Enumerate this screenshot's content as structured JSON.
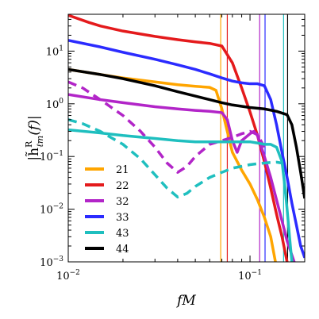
{
  "chart_data": {
    "type": "line",
    "xlabel": "fM",
    "ylabel": "|h̃ℓm R(f)|",
    "ylabel_main": "|h̃",
    "ylabel_sup": "R",
    "ylabel_sub": "ℓm",
    "ylabel_tail": "(f)|",
    "xscale": "log",
    "yscale": "log",
    "xlim": [
      0.01,
      0.2
    ],
    "ylim": [
      0.001,
      50
    ],
    "x_ticks": [
      {
        "value": 0.01,
        "label_base": "10",
        "label_exp": "−2"
      },
      {
        "value": 0.1,
        "label_base": "10",
        "label_exp": "−1"
      }
    ],
    "y_ticks": [
      {
        "value": 0.001,
        "label_base": "10",
        "label_exp": "−3"
      },
      {
        "value": 0.01,
        "label_base": "10",
        "label_exp": "−2"
      },
      {
        "value": 0.1,
        "label_base": "10",
        "label_exp": "−1"
      },
      {
        "value": 1,
        "label_base": "10",
        "label_exp": "0"
      },
      {
        "value": 10,
        "label_base": "10",
        "label_exp": "1"
      }
    ],
    "legend_position": "lower-left",
    "vertical_lines": [
      {
        "x": 0.069,
        "color": "#ffa500"
      },
      {
        "x": 0.075,
        "color": "#e41a1c"
      },
      {
        "x": 0.113,
        "color": "#b225c8"
      },
      {
        "x": 0.121,
        "color": "#2b2bff"
      },
      {
        "x": 0.153,
        "color": "#1fbfbf"
      },
      {
        "x": 0.161,
        "color": "#000000"
      }
    ],
    "series": [
      {
        "name": "21",
        "color": "#ffa500",
        "style": "solid",
        "points": [
          [
            0.01,
            4.5
          ],
          [
            0.015,
            3.6
          ],
          [
            0.02,
            3.1
          ],
          [
            0.03,
            2.6
          ],
          [
            0.04,
            2.3
          ],
          [
            0.05,
            2.15
          ],
          [
            0.06,
            2.05
          ],
          [
            0.065,
            1.8
          ],
          [
            0.07,
            0.8
          ],
          [
            0.075,
            0.3
          ],
          [
            0.08,
            0.12
          ],
          [
            0.09,
            0.055
          ],
          [
            0.1,
            0.03
          ],
          [
            0.11,
            0.015
          ],
          [
            0.12,
            0.007
          ],
          [
            0.13,
            0.003
          ],
          [
            0.138,
            0.001
          ]
        ]
      },
      {
        "name": "22",
        "color": "#e41a1c",
        "style": "solid",
        "points": [
          [
            0.01,
            48
          ],
          [
            0.013,
            35
          ],
          [
            0.015,
            30
          ],
          [
            0.02,
            24
          ],
          [
            0.03,
            19
          ],
          [
            0.04,
            16.5
          ],
          [
            0.05,
            15
          ],
          [
            0.06,
            14
          ],
          [
            0.07,
            12.5
          ],
          [
            0.08,
            6
          ],
          [
            0.09,
            2
          ],
          [
            0.1,
            0.7
          ],
          [
            0.11,
            0.25
          ],
          [
            0.12,
            0.08
          ],
          [
            0.13,
            0.025
          ],
          [
            0.14,
            0.008
          ],
          [
            0.15,
            0.003
          ],
          [
            0.16,
            0.001
          ]
        ]
      },
      {
        "name": "32",
        "color": "#b225c8",
        "style": "solid",
        "points": [
          [
            0.01,
            1.5
          ],
          [
            0.015,
            1.2
          ],
          [
            0.02,
            1.05
          ],
          [
            0.03,
            0.88
          ],
          [
            0.04,
            0.8
          ],
          [
            0.05,
            0.75
          ],
          [
            0.06,
            0.72
          ],
          [
            0.07,
            0.68
          ],
          [
            0.075,
            0.5
          ],
          [
            0.08,
            0.2
          ],
          [
            0.085,
            0.12
          ],
          [
            0.09,
            0.2
          ],
          [
            0.1,
            0.27
          ],
          [
            0.105,
            0.3
          ],
          [
            0.11,
            0.25
          ],
          [
            0.12,
            0.1
          ],
          [
            0.13,
            0.04
          ],
          [
            0.14,
            0.015
          ],
          [
            0.15,
            0.006
          ],
          [
            0.16,
            0.0025
          ],
          [
            0.175,
            0.001
          ]
        ]
      },
      {
        "name": "32",
        "color": "#b225c8",
        "style": "dashed",
        "legend": false,
        "points": [
          [
            0.01,
            2.6
          ],
          [
            0.012,
            2.0
          ],
          [
            0.015,
            1.2
          ],
          [
            0.02,
            0.6
          ],
          [
            0.025,
            0.3
          ],
          [
            0.03,
            0.15
          ],
          [
            0.035,
            0.075
          ],
          [
            0.04,
            0.05
          ],
          [
            0.045,
            0.065
          ],
          [
            0.05,
            0.1
          ],
          [
            0.06,
            0.17
          ],
          [
            0.07,
            0.2
          ],
          [
            0.08,
            0.23
          ],
          [
            0.09,
            0.27
          ],
          [
            0.1,
            0.3
          ],
          [
            0.11,
            0.26
          ],
          [
            0.12,
            0.15
          ]
        ]
      },
      {
        "name": "33",
        "color": "#2b2bff",
        "style": "solid",
        "points": [
          [
            0.01,
            16
          ],
          [
            0.015,
            12
          ],
          [
            0.02,
            9.5
          ],
          [
            0.03,
            7
          ],
          [
            0.04,
            5.5
          ],
          [
            0.05,
            4.5
          ],
          [
            0.06,
            3.7
          ],
          [
            0.07,
            3.1
          ],
          [
            0.08,
            2.7
          ],
          [
            0.09,
            2.5
          ],
          [
            0.1,
            2.4
          ],
          [
            0.11,
            2.4
          ],
          [
            0.12,
            2.2
          ],
          [
            0.13,
            1.2
          ],
          [
            0.14,
            0.4
          ],
          [
            0.15,
            0.12
          ],
          [
            0.16,
            0.04
          ],
          [
            0.17,
            0.013
          ],
          [
            0.18,
            0.005
          ],
          [
            0.19,
            0.002
          ],
          [
            0.2,
            0.0012
          ]
        ]
      },
      {
        "name": "43",
        "color": "#1fbfbf",
        "style": "solid",
        "points": [
          [
            0.01,
            0.32
          ],
          [
            0.015,
            0.28
          ],
          [
            0.02,
            0.25
          ],
          [
            0.03,
            0.22
          ],
          [
            0.04,
            0.2
          ],
          [
            0.05,
            0.19
          ],
          [
            0.06,
            0.19
          ],
          [
            0.07,
            0.19
          ],
          [
            0.08,
            0.19
          ],
          [
            0.09,
            0.19
          ],
          [
            0.1,
            0.19
          ],
          [
            0.11,
            0.18
          ],
          [
            0.12,
            0.17
          ],
          [
            0.13,
            0.17
          ],
          [
            0.14,
            0.15
          ],
          [
            0.15,
            0.08
          ],
          [
            0.155,
            0.03
          ],
          [
            0.16,
            0.01
          ],
          [
            0.165,
            0.003
          ],
          [
            0.17,
            0.001
          ]
        ]
      },
      {
        "name": "43",
        "color": "#1fbfbf",
        "style": "dashed",
        "legend": false,
        "points": [
          [
            0.01,
            0.5
          ],
          [
            0.012,
            0.42
          ],
          [
            0.015,
            0.3
          ],
          [
            0.02,
            0.17
          ],
          [
            0.025,
            0.09
          ],
          [
            0.03,
            0.045
          ],
          [
            0.035,
            0.025
          ],
          [
            0.04,
            0.017
          ],
          [
            0.045,
            0.02
          ],
          [
            0.05,
            0.027
          ],
          [
            0.06,
            0.04
          ],
          [
            0.07,
            0.05
          ],
          [
            0.08,
            0.06
          ],
          [
            0.09,
            0.065
          ],
          [
            0.1,
            0.07
          ],
          [
            0.11,
            0.073
          ],
          [
            0.12,
            0.075
          ],
          [
            0.13,
            0.077
          ],
          [
            0.14,
            0.078
          ],
          [
            0.15,
            0.075
          ]
        ]
      },
      {
        "name": "44",
        "color": "#000000",
        "style": "solid",
        "points": [
          [
            0.01,
            4.5
          ],
          [
            0.015,
            3.6
          ],
          [
            0.02,
            3.0
          ],
          [
            0.03,
            2.2
          ],
          [
            0.04,
            1.7
          ],
          [
            0.05,
            1.4
          ],
          [
            0.06,
            1.2
          ],
          [
            0.07,
            1.05
          ],
          [
            0.08,
            0.95
          ],
          [
            0.1,
            0.85
          ],
          [
            0.12,
            0.8
          ],
          [
            0.14,
            0.72
          ],
          [
            0.16,
            0.62
          ],
          [
            0.17,
            0.4
          ],
          [
            0.18,
            0.15
          ],
          [
            0.19,
            0.05
          ],
          [
            0.2,
            0.016
          ]
        ]
      }
    ]
  }
}
